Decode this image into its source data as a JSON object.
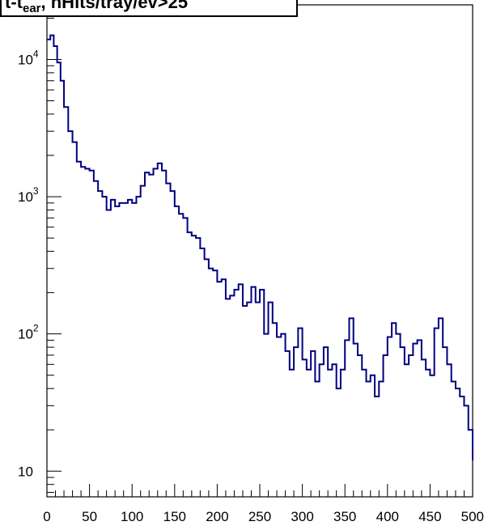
{
  "chart_data": {
    "type": "line",
    "title_main": "t-t",
    "title_sub": "ear",
    "title_rest": ", nHits/tray/ev>25",
    "xlabel": "",
    "ylabel": "",
    "xlim": [
      0,
      500
    ],
    "ylim": [
      6.5,
      25000
    ],
    "yscale": "log",
    "grid": false,
    "x_ticks": [
      {
        "value": 0,
        "label": "0"
      },
      {
        "value": 50,
        "label": "50"
      },
      {
        "value": 100,
        "label": "100"
      },
      {
        "value": 150,
        "label": "150"
      },
      {
        "value": 200,
        "label": "200"
      },
      {
        "value": 250,
        "label": "250"
      },
      {
        "value": 300,
        "label": "300"
      },
      {
        "value": 350,
        "label": "350"
      },
      {
        "value": 400,
        "label": "400"
      },
      {
        "value": 450,
        "label": "450"
      },
      {
        "value": 500,
        "label": "500"
      }
    ],
    "y_ticks": [
      {
        "value": 10,
        "base": "10",
        "exp": ""
      },
      {
        "value": 100,
        "base": "10",
        "exp": "2"
      },
      {
        "value": 1000,
        "base": "10",
        "exp": "3"
      },
      {
        "value": 10000,
        "base": "10",
        "exp": "4"
      }
    ],
    "line_color": "#000080",
    "series": [
      {
        "x": [
          0,
          4,
          8,
          12,
          16,
          20,
          25,
          30,
          35,
          40,
          45,
          50,
          55,
          60,
          65,
          70,
          75,
          80,
          85,
          90,
          95,
          100,
          105,
          110,
          115,
          120,
          125,
          130,
          135,
          140,
          145,
          150,
          155,
          160,
          165,
          170,
          175,
          180,
          185,
          190,
          195,
          200,
          205,
          210,
          215,
          220,
          225,
          230,
          235,
          240,
          245,
          250,
          255,
          260,
          265,
          270,
          275,
          280,
          285,
          290,
          295,
          300,
          305,
          310,
          315,
          320,
          325,
          330,
          335,
          340,
          345,
          350,
          355,
          360,
          365,
          370,
          375,
          380,
          385,
          390,
          395,
          400,
          405,
          410,
          415,
          420,
          425,
          430,
          435,
          440,
          445,
          450,
          455,
          460,
          465,
          470,
          475,
          480,
          485,
          490,
          495,
          500
        ],
        "y": [
          14000,
          15000,
          12500,
          9500,
          7000,
          4500,
          3000,
          2500,
          1800,
          1650,
          1600,
          1550,
          1300,
          1100,
          1000,
          800,
          950,
          850,
          900,
          900,
          950,
          900,
          1000,
          1200,
          1500,
          1450,
          1600,
          1750,
          1550,
          1250,
          1100,
          850,
          750,
          700,
          550,
          520,
          500,
          420,
          350,
          300,
          290,
          240,
          250,
          180,
          190,
          210,
          230,
          160,
          170,
          220,
          170,
          210,
          100,
          170,
          120,
          95,
          100,
          75,
          55,
          80,
          110,
          65,
          55,
          75,
          45,
          60,
          80,
          55,
          60,
          40,
          55,
          90,
          130,
          85,
          70,
          55,
          45,
          50,
          35,
          45,
          70,
          95,
          120,
          100,
          80,
          60,
          70,
          85,
          90,
          65,
          55,
          50,
          110,
          130,
          80,
          60,
          45,
          40,
          35,
          30,
          20,
          12
        ]
      }
    ]
  }
}
